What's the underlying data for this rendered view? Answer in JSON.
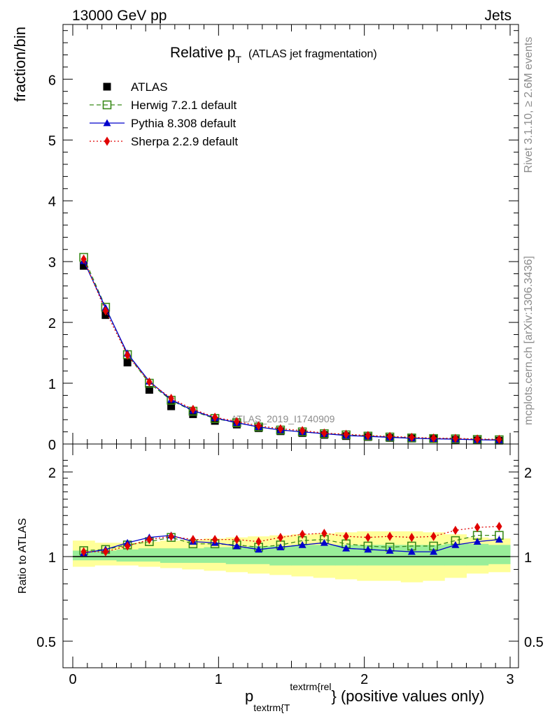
{
  "header": {
    "left": "13000 GeV pp",
    "right": "Jets"
  },
  "side": {
    "rivet": "Rivet 3.1.10, ≥ 2.6M events",
    "mcplots": "mcplots.cern.ch [arXiv:1306.3436]"
  },
  "chart_data": [
    {
      "type": "scatter",
      "title_main": "Relative p",
      "title_sub": "T",
      "title_tail": "(ATLAS jet fragmentation)",
      "ylabel": "fraction/bin",
      "watermark": "ATLAS_2019_I1740909",
      "xlim": [
        0,
        3
      ],
      "ylim": [
        0,
        6.9
      ],
      "yticks": [
        0,
        1,
        2,
        3,
        4,
        5,
        6
      ],
      "legend_position": "top-left",
      "x": [
        0.075,
        0.225,
        0.375,
        0.525,
        0.675,
        0.825,
        0.975,
        1.125,
        1.275,
        1.425,
        1.575,
        1.725,
        1.875,
        2.025,
        2.175,
        2.325,
        2.475,
        2.625,
        2.775,
        2.925
      ],
      "series": [
        {
          "name": "ATLAS",
          "color": "#000000",
          "marker": "square-filled",
          "values": [
            2.93,
            2.12,
            1.34,
            0.89,
            0.62,
            0.49,
            0.38,
            0.32,
            0.26,
            0.21,
            0.18,
            0.15,
            0.13,
            0.115,
            0.1,
            0.09,
            0.08,
            0.07,
            0.06,
            0.055
          ]
        },
        {
          "name": "Herwig 7.2.1 default",
          "color": "#3a8a1a",
          "marker": "square-open",
          "dash": "6,4",
          "values": [
            3.07,
            2.25,
            1.47,
            1.0,
            0.72,
            0.54,
            0.42,
            0.35,
            0.28,
            0.23,
            0.2,
            0.17,
            0.15,
            0.13,
            0.115,
            0.1,
            0.09,
            0.085,
            0.075,
            0.07
          ]
        },
        {
          "name": "Pythia 8.308 default",
          "color": "#0000cc",
          "marker": "triangle",
          "dash": "",
          "values": [
            3.01,
            2.24,
            1.49,
            1.03,
            0.73,
            0.55,
            0.43,
            0.35,
            0.28,
            0.23,
            0.2,
            0.17,
            0.14,
            0.125,
            0.11,
            0.095,
            0.085,
            0.08,
            0.07,
            0.065
          ]
        },
        {
          "name": "Sherpa 2.2.9 default",
          "color": "#e00000",
          "marker": "diamond",
          "dash": "2,3",
          "values": [
            3.04,
            2.19,
            1.46,
            1.02,
            0.75,
            0.57,
            0.44,
            0.37,
            0.3,
            0.25,
            0.22,
            0.18,
            0.16,
            0.14,
            0.125,
            0.11,
            0.098,
            0.093,
            0.082,
            0.077
          ]
        }
      ]
    },
    {
      "type": "scatter",
      "ylabel": "Ratio to ATLAS",
      "xlabel_main": "p",
      "xlabel_sub": "textrm{T",
      "xlabel_sup": "textrm{rel",
      "xlabel_tail": "} (positive values only)",
      "xlim": [
        0,
        3
      ],
      "ylim": [
        0.38,
        2.3
      ],
      "yticks": [
        0.5,
        1,
        2
      ],
      "xticks": [
        0,
        1,
        2,
        3
      ],
      "x_edges": [
        0,
        0.15,
        0.3,
        0.45,
        0.6,
        0.75,
        0.9,
        1.05,
        1.2,
        1.35,
        1.5,
        1.65,
        1.8,
        1.95,
        2.1,
        2.25,
        2.4,
        2.55,
        2.7,
        2.85,
        3.0
      ],
      "band_yellow": [
        [
          0.92,
          1.14
        ],
        [
          0.93,
          1.12
        ],
        [
          0.93,
          1.12
        ],
        [
          0.92,
          1.13
        ],
        [
          0.91,
          1.14
        ],
        [
          0.9,
          1.15
        ],
        [
          0.89,
          1.16
        ],
        [
          0.88,
          1.17
        ],
        [
          0.87,
          1.18
        ],
        [
          0.86,
          1.19
        ],
        [
          0.85,
          1.2
        ],
        [
          0.84,
          1.21
        ],
        [
          0.83,
          1.22
        ],
        [
          0.82,
          1.23
        ],
        [
          0.82,
          1.23
        ],
        [
          0.81,
          1.23
        ],
        [
          0.82,
          1.22
        ],
        [
          0.84,
          1.2
        ],
        [
          0.87,
          1.17
        ],
        [
          0.88,
          1.16
        ]
      ],
      "band_green": [
        [
          0.97,
          1.05
        ],
        [
          0.97,
          1.05
        ],
        [
          0.96,
          1.06
        ],
        [
          0.96,
          1.07
        ],
        [
          0.95,
          1.07
        ],
        [
          0.95,
          1.07
        ],
        [
          0.95,
          1.08
        ],
        [
          0.94,
          1.08
        ],
        [
          0.94,
          1.09
        ],
        [
          0.93,
          1.09
        ],
        [
          0.93,
          1.1
        ],
        [
          0.93,
          1.1
        ],
        [
          0.93,
          1.1
        ],
        [
          0.93,
          1.1
        ],
        [
          0.93,
          1.1
        ],
        [
          0.93,
          1.1
        ],
        [
          0.93,
          1.1
        ],
        [
          0.93,
          1.11
        ],
        [
          0.93,
          1.11
        ],
        [
          0.94,
          1.1
        ]
      ],
      "series": [
        {
          "name": "Herwig 7.2.1 default",
          "values": [
            1.05,
            1.06,
            1.1,
            1.13,
            1.17,
            1.11,
            1.11,
            1.1,
            1.08,
            1.1,
            1.14,
            1.15,
            1.11,
            1.09,
            1.08,
            1.09,
            1.09,
            1.14,
            1.19,
            1.19
          ]
        },
        {
          "name": "Pythia 8.308 default",
          "values": [
            1.03,
            1.06,
            1.12,
            1.17,
            1.19,
            1.13,
            1.12,
            1.09,
            1.06,
            1.08,
            1.1,
            1.12,
            1.07,
            1.06,
            1.05,
            1.04,
            1.04,
            1.1,
            1.13,
            1.15
          ]
        },
        {
          "name": "Sherpa 2.2.9 default",
          "values": [
            1.04,
            1.04,
            1.09,
            1.15,
            1.18,
            1.15,
            1.15,
            1.15,
            1.13,
            1.17,
            1.2,
            1.21,
            1.18,
            1.17,
            1.18,
            1.17,
            1.18,
            1.24,
            1.27,
            1.28
          ]
        }
      ]
    }
  ]
}
